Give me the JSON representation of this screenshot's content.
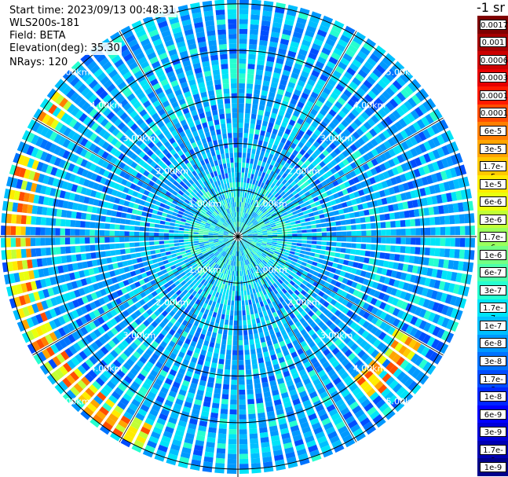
{
  "info": {
    "start_time": "Start time: 2023/09/13 00:48:31",
    "instrument": "WLS200s-181",
    "field": "Field: BETA",
    "elevation": "Elevation(deg): 35.30",
    "nrays": "NRays: 120"
  },
  "colorbar": {
    "unit": "-1 sr",
    "labels": [
      "0.0017",
      "0.001",
      "0.0006",
      "0.0003",
      "0.00017",
      "0.0001",
      "6e-5",
      "3e-5",
      "1.7e-5",
      "1e-5",
      "6e-6",
      "3e-6",
      "1.7e-6",
      "1e-6",
      "6e-7",
      "3e-7",
      "1.7e-7",
      "1e-7",
      "6e-8",
      "3e-8",
      "1.7e-8",
      "1e-8",
      "6e-9",
      "3e-9",
      "1.7e-9",
      "1e-9"
    ],
    "colors": [
      "#7f0000",
      "#a50000",
      "#cc0000",
      "#e60000",
      "#ff1a00",
      "#ff4d00",
      "#ff7f00",
      "#ffa500",
      "#ffc800",
      "#ffec00",
      "#eaff0d",
      "#c1ff36",
      "#9aff5d",
      "#73ff84",
      "#4dffaa",
      "#26ffd0",
      "#00e4f8",
      "#00bfff",
      "#0099ff",
      "#0073ff",
      "#004dff",
      "#0026ff",
      "#0000ff",
      "#0000d8",
      "#0000b2",
      "#00008b"
    ]
  },
  "chart_data": {
    "type": "heatmap",
    "projection": "polar (PPI scan)",
    "rays": 120,
    "range_rings_km": [
      "1.00km",
      "2.00km",
      "3.00km",
      "4.00km",
      "5.00km"
    ],
    "rings_km": [
      1,
      2,
      3,
      4,
      5
    ],
    "max_range_km": 5.1,
    "color_scale": "log",
    "value_range": [
      1e-09,
      0.0017
    ],
    "dominant_value": "approx 1.7e-8 to 1e-7 (blue-cyan background)",
    "features": [
      {
        "description": "enhanced backscatter arc",
        "azimuth_deg_range": [
          205,
          290
        ],
        "range_km": [
          4.5,
          5.0
        ],
        "approx_value": "1e-5 to 1e-4"
      },
      {
        "description": "enhanced backscatter patch",
        "azimuth_deg_range": [
          300,
          310
        ],
        "range_km": [
          4.6,
          5.0
        ],
        "approx_value": "1e-5 to 3e-5"
      },
      {
        "description": "enhanced backscatter patch",
        "azimuth_deg_range": [
          120,
          140
        ],
        "range_km": [
          3.9,
          4.6
        ],
        "approx_value": "1e-6 to 1e-5"
      }
    ]
  }
}
